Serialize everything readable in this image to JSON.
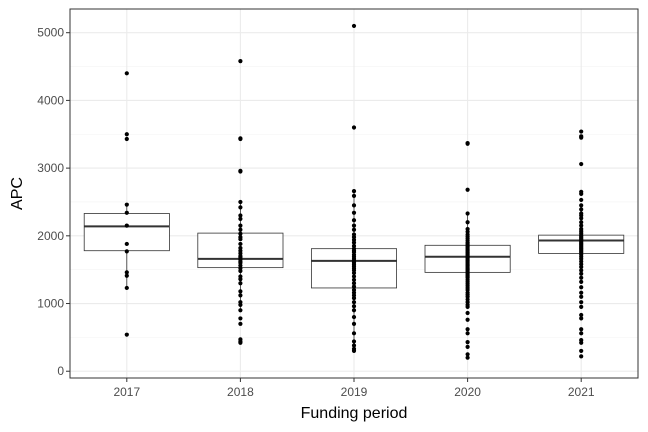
{
  "chart_data": {
    "type": "boxplot",
    "xlabel": "Funding period",
    "ylabel": "APC",
    "ylim": [
      -100,
      5350
    ],
    "y_ticks": [
      0,
      1000,
      2000,
      3000,
      4000,
      5000
    ],
    "categories": [
      "2017",
      "2018",
      "2019",
      "2020",
      "2021"
    ],
    "grid": true,
    "boxes": [
      {
        "category": "2017",
        "q1": 1780,
        "median": 2140,
        "q3": 2330,
        "whisker_low": 1240,
        "whisker_high": 2460
      },
      {
        "category": "2018",
        "q1": 1530,
        "median": 1660,
        "q3": 2040,
        "whisker_low": 900,
        "whisker_high": 2500
      },
      {
        "category": "2019",
        "q1": 1230,
        "median": 1630,
        "q3": 1810,
        "whisker_low": 380,
        "whisker_high": 2660
      },
      {
        "category": "2020",
        "q1": 1460,
        "median": 1690,
        "q3": 1860,
        "whisker_low": 960,
        "whisker_high": 2330
      },
      {
        "category": "2021",
        "q1": 1740,
        "median": 1930,
        "q3": 2010,
        "whisker_low": 1560,
        "whisker_high": 2290
      }
    ],
    "points": [
      {
        "category": "2017",
        "values": [
          4400,
          3500,
          3430,
          2460,
          2340,
          2150,
          1880,
          1770,
          1460,
          1410,
          1230,
          540
        ]
      },
      {
        "category": "2018",
        "values": [
          4580,
          3440,
          3430,
          2960,
          2950,
          2500,
          2420,
          2300,
          2250,
          2150,
          2090,
          2030,
          1980,
          1950,
          1880,
          1820,
          1780,
          1740,
          1700,
          1680,
          1650,
          1620,
          1600,
          1560,
          1520,
          1480,
          1400,
          1360,
          1300,
          1180,
          1120,
          1020,
          980,
          900,
          780,
          700,
          470,
          440,
          420
        ]
      },
      {
        "category": "2019",
        "values": [
          5100,
          3600,
          2660,
          2590,
          2450,
          2340,
          2230,
          2150,
          2090,
          2020,
          1980,
          1940,
          1900,
          1850,
          1810,
          1780,
          1760,
          1720,
          1690,
          1660,
          1630,
          1610,
          1580,
          1550,
          1520,
          1490,
          1450,
          1400,
          1350,
          1300,
          1250,
          1200,
          1160,
          1120,
          1080,
          1020,
          960,
          900,
          800,
          700,
          560,
          440,
          380,
          330,
          300
        ]
      },
      {
        "category": "2020",
        "values": [
          3370,
          3360,
          2680,
          2330,
          2200,
          2100,
          2060,
          2020,
          1990,
          1960,
          1930,
          1900,
          1880,
          1860,
          1840,
          1820,
          1800,
          1780,
          1760,
          1740,
          1720,
          1700,
          1690,
          1680,
          1660,
          1640,
          1620,
          1600,
          1580,
          1560,
          1540,
          1520,
          1500,
          1480,
          1460,
          1440,
          1420,
          1400,
          1380,
          1350,
          1320,
          1290,
          1260,
          1230,
          1200,
          1160,
          1130,
          1100,
          1060,
          1020,
          980,
          950,
          860,
          760,
          620,
          560,
          430,
          360,
          250,
          200
        ]
      },
      {
        "category": "2021",
        "values": [
          3540,
          3470,
          3450,
          3060,
          2650,
          2620,
          2530,
          2450,
          2390,
          2330,
          2300,
          2260,
          2200,
          2150,
          2100,
          2070,
          2040,
          2010,
          1990,
          1970,
          1950,
          1930,
          1910,
          1890,
          1870,
          1850,
          1830,
          1810,
          1790,
          1770,
          1750,
          1720,
          1690,
          1660,
          1620,
          1580,
          1540,
          1490,
          1440,
          1380,
          1320,
          1240,
          1160,
          1100,
          1020,
          950,
          830,
          780,
          620,
          560,
          460,
          420,
          300,
          220
        ]
      }
    ],
    "colors": {
      "box_stroke": "#333333",
      "point": "#000000",
      "grid_major": "#ebebeb",
      "grid_minor": "#f3f3f3",
      "panel_border": "#333333",
      "tick_text": "#4d4d4d"
    }
  }
}
